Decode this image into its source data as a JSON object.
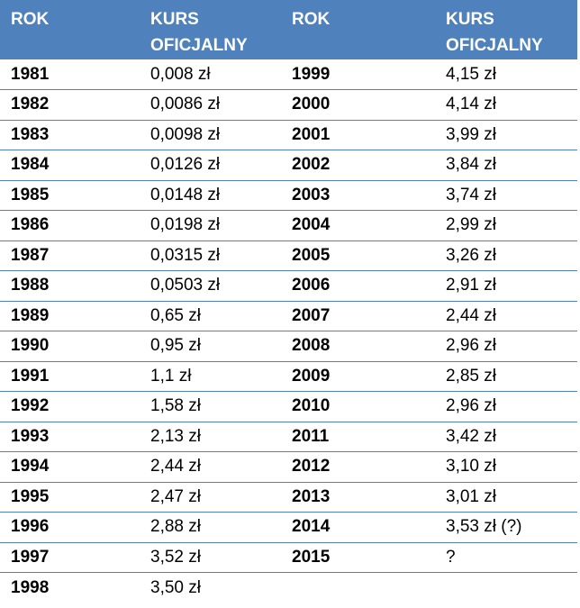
{
  "header": {
    "rok_left": "ROK",
    "kurs_left": "KURS OFICJALNY",
    "rok_right": "ROK",
    "kurs_right": "KURS OFICJALNY"
  },
  "rows": [
    {
      "y1": "1981",
      "k1": "0,008 zł",
      "y2": "1999",
      "k2": "4,15 zł"
    },
    {
      "y1": "1982",
      "k1": "0,0086 zł",
      "y2": "2000",
      "k2": "4,14 zł"
    },
    {
      "y1": "1983",
      "k1": "0,0098 zł",
      "y2": "2001",
      "k2": "3,99 zł"
    },
    {
      "y1": "1984",
      "k1": "0,0126 zł",
      "y2": "2002",
      "k2": "3,84 zł"
    },
    {
      "y1": "1985",
      "k1": "0,0148 zł",
      "y2": "2003",
      "k2": "3,74 zł"
    },
    {
      "y1": "1986",
      "k1": "0,0198 zł",
      "y2": "2004",
      "k2": "2,99 zł"
    },
    {
      "y1": "1987",
      "k1": "0,0315 zł",
      "y2": "2005",
      "k2": "3,26 zł"
    },
    {
      "y1": "1988",
      "k1": "0,0503 zł",
      "y2": "2006",
      "k2": "2,91 zł"
    },
    {
      "y1": "1989",
      "k1": "0,65 zł",
      "y2": "2007",
      "k2": "2,44 zł"
    },
    {
      "y1": "1990",
      "k1": "0,95 zł",
      "y2": "2008",
      "k2": "2,96 zł"
    },
    {
      "y1": "1991",
      "k1": "1,1 zł",
      "y2": "2009",
      "k2": "2,85 zł"
    },
    {
      "y1": "1992",
      "k1": "1,58 zł",
      "y2": "2010",
      "k2": "2,96 zł"
    },
    {
      "y1": "1993",
      "k1": "2,13 zł",
      "y2": "2011",
      "k2": "3,42 zł"
    },
    {
      "y1": "1994",
      "k1": "2,44 zł",
      "y2": "2012",
      "k2": "3,10 zł"
    },
    {
      "y1": "1995",
      "k1": "2,47 zł",
      "y2": "2013",
      "k2": "3,01 zł"
    },
    {
      "y1": "1996",
      "k1": "2,88 zł",
      "y2": "2014",
      "k2": "3,53 zł (?)"
    },
    {
      "y1": "1997",
      "k1": "3,52 zł",
      "y2": "2015",
      "k2": "?"
    },
    {
      "y1": "1998",
      "k1": "3,50 zł",
      "y2": "",
      "k2": ""
    }
  ]
}
